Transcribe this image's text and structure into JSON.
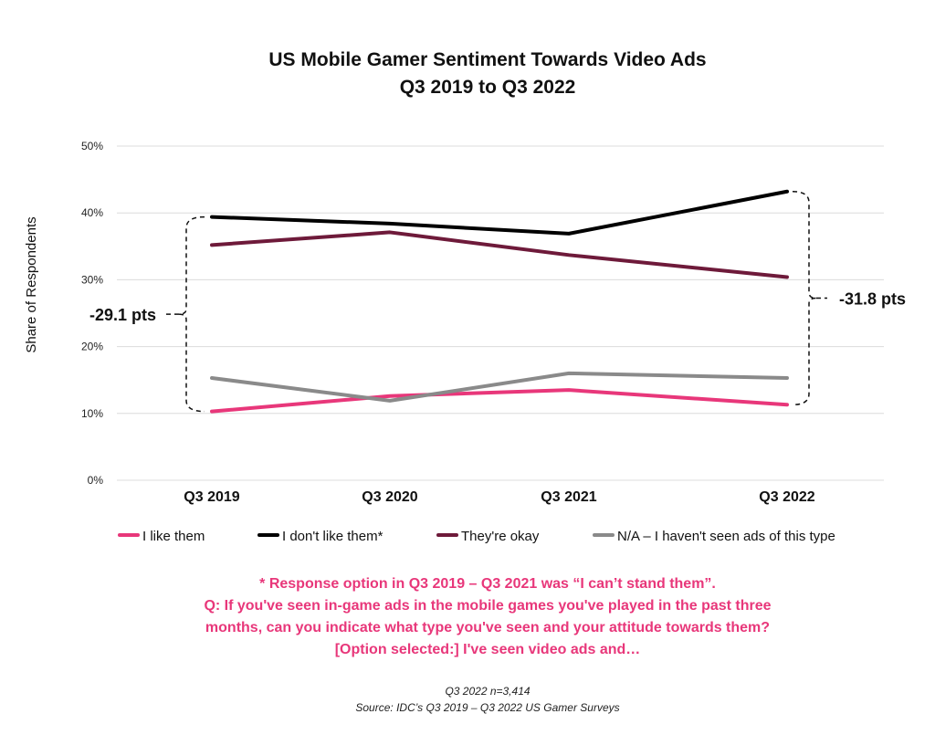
{
  "chart_data": {
    "type": "line",
    "title": "US Mobile Gamer Sentiment Towards Video Ads",
    "subtitle": "Q3 2019 to Q3 2022",
    "ylabel": "Share of Respondents",
    "xlabel": "",
    "categories": [
      "Q3 2019",
      "Q3 2020",
      "Q3 2021",
      "Q3 2022"
    ],
    "ylim": [
      0,
      50
    ],
    "yticks": [
      "0%",
      "10%",
      "20%",
      "30%",
      "40%",
      "50%"
    ],
    "ytick_values": [
      0,
      10,
      20,
      30,
      40,
      50
    ],
    "grid": true,
    "legend_position": "bottom",
    "series": [
      {
        "name": "I like them",
        "color": "#e8377a",
        "values": [
          10.3,
          12.6,
          13.5,
          11.3
        ]
      },
      {
        "name": "I don't like them*",
        "color": "#000000",
        "values": [
          39.4,
          38.4,
          36.9,
          43.2
        ]
      },
      {
        "name": "They're okay",
        "color": "#6e1a3a",
        "values": [
          35.2,
          37.1,
          33.7,
          30.4
        ]
      },
      {
        "name": "N/A – I haven't seen ads of this type",
        "color": "#8a8a8a",
        "values": [
          15.3,
          11.9,
          16.0,
          15.3
        ]
      }
    ],
    "annotations": [
      {
        "text": "-29.1 pts",
        "category": "Q3 2019",
        "from": 10.3,
        "to": 39.4,
        "side": "left"
      },
      {
        "text": "-31.8 pts",
        "category": "Q3 2022",
        "from": 11.3,
        "to": 43.2,
        "side": "right"
      }
    ]
  },
  "footnote": {
    "lines": [
      "* Response option in Q3 2019 – Q3 2021 was “I can’t stand them”.",
      "Q: If you've seen in-game ads in the mobile games you've played in the past three",
      "months, can you indicate what type you've seen and your attitude towards them?",
      "[Option selected:] I've seen video ads and…"
    ],
    "color": "#e8377a"
  },
  "source": {
    "sample": "Q3 2022 n=3,414",
    "text": "Source: IDC’s Q3 2019 – Q3 2022 US Gamer Surveys"
  }
}
